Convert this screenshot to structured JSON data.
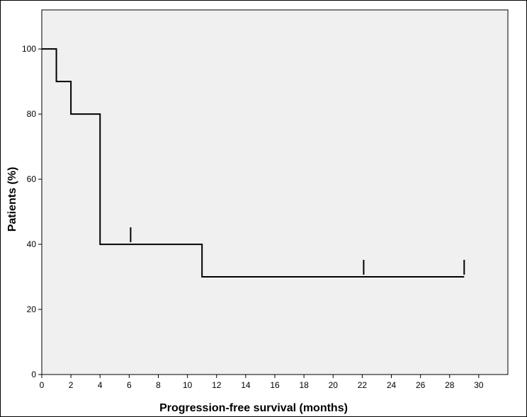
{
  "chart_data": {
    "type": "line",
    "subtype": "kaplan-meier-step",
    "title": "",
    "xlabel": "Progression-free survival (months)",
    "ylabel": "Patients (%)",
    "xlim": [
      0,
      32
    ],
    "ylim": [
      0,
      112
    ],
    "x_ticks": [
      0,
      2,
      4,
      6,
      8,
      10,
      12,
      14,
      16,
      18,
      20,
      22,
      24,
      26,
      28,
      30
    ],
    "y_ticks": [
      0,
      20,
      40,
      60,
      80,
      100
    ],
    "grid": false,
    "plot_background": "#f0f0f0",
    "line_color": "#000000",
    "series": [
      {
        "steps": [
          {
            "x": 0,
            "y": 100
          },
          {
            "x": 1,
            "y": 90
          },
          {
            "x": 2,
            "y": 80
          },
          {
            "x": 4,
            "y": 40
          },
          {
            "x": 11,
            "y": 30
          }
        ],
        "end_x": 29,
        "censored": [
          {
            "x": 6.1,
            "y": 40
          },
          {
            "x": 22.1,
            "y": 30
          },
          {
            "x": 29,
            "y": 30
          }
        ]
      }
    ]
  }
}
